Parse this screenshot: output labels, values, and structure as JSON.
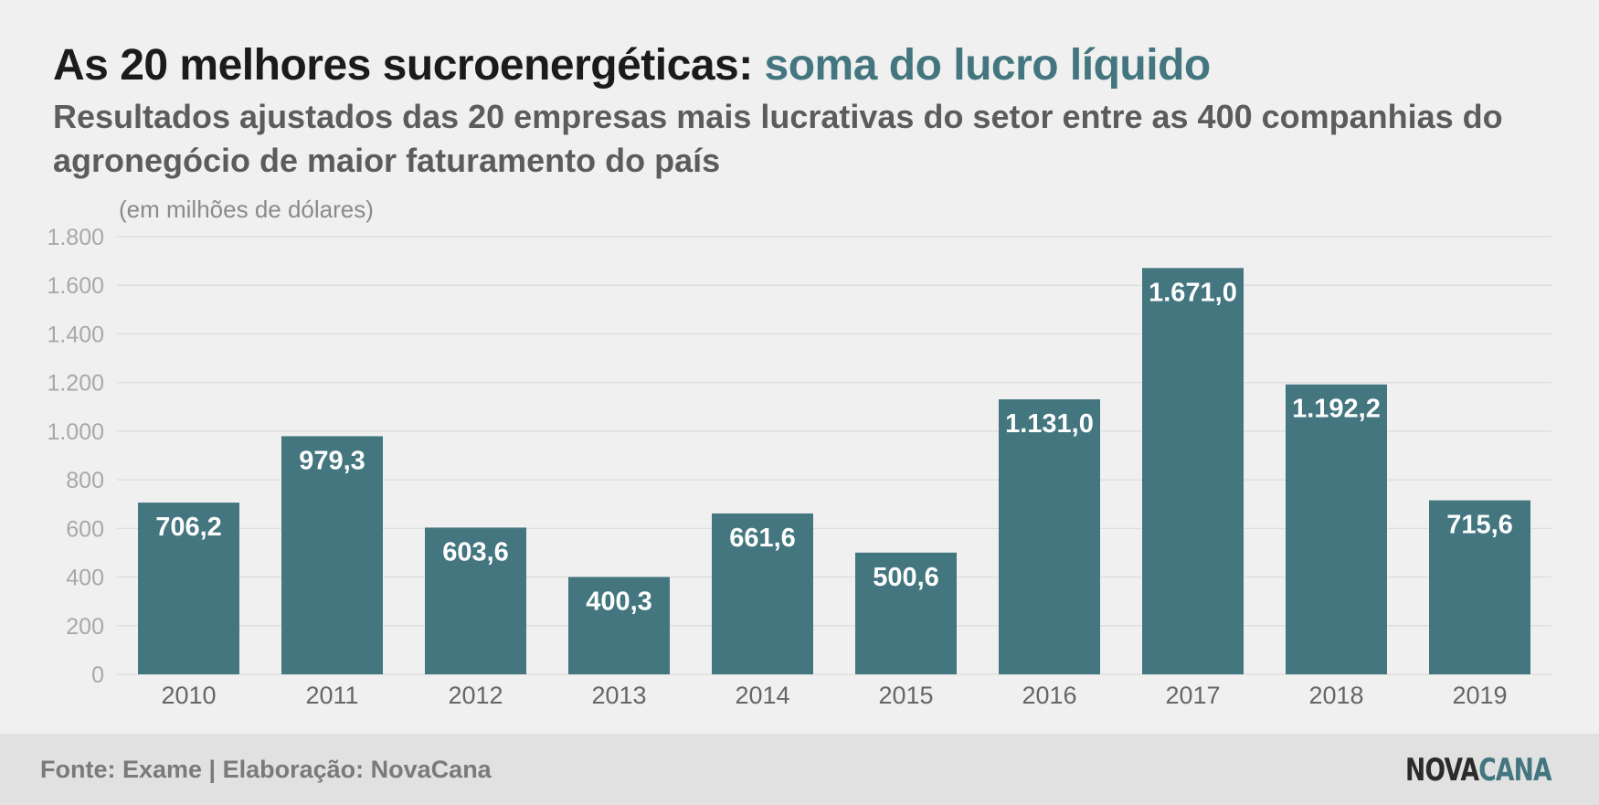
{
  "header": {
    "title_main": "As 20 melhores sucroenergéticas:",
    "title_accent": "soma do lucro líquido",
    "subtitle": "Resultados ajustados das 20 empresas mais lucrativas do setor entre as 400 companhias do agronegócio de maior faturamento do país"
  },
  "chart_data": {
    "type": "bar",
    "unit_note": "(em milhões de dólares)",
    "categories": [
      "2010",
      "2011",
      "2012",
      "2013",
      "2014",
      "2015",
      "2016",
      "2017",
      "2018",
      "2019"
    ],
    "values": [
      706.2,
      979.3,
      603.6,
      400.3,
      661.6,
      500.6,
      1131.0,
      1671.0,
      1192.2,
      715.6
    ],
    "value_labels": [
      "706,2",
      "979,3",
      "603,6",
      "400,3",
      "661,6",
      "500,6",
      "1.131,0",
      "1.671,0",
      "1.192,2",
      "715,6"
    ],
    "y_ticks": [
      0,
      200,
      400,
      600,
      800,
      1000,
      1200,
      1400,
      1600,
      1800
    ],
    "y_tick_labels": [
      "0",
      "200",
      "400",
      "600",
      "800",
      "1.000",
      "1.200",
      "1.400",
      "1.600",
      "1.800"
    ],
    "ylim": [
      0,
      1800
    ],
    "grid": true,
    "colors": {
      "bar": "#43767f",
      "grid": "#dcdcdc",
      "tick_text": "#a8a8a8",
      "category_text": "#666666",
      "bar_label": "#ffffff"
    }
  },
  "footer": {
    "source": "Fonte: Exame | Elaboração: NovaCana",
    "logo_part1": "NOVA",
    "logo_part2": "CANA"
  }
}
